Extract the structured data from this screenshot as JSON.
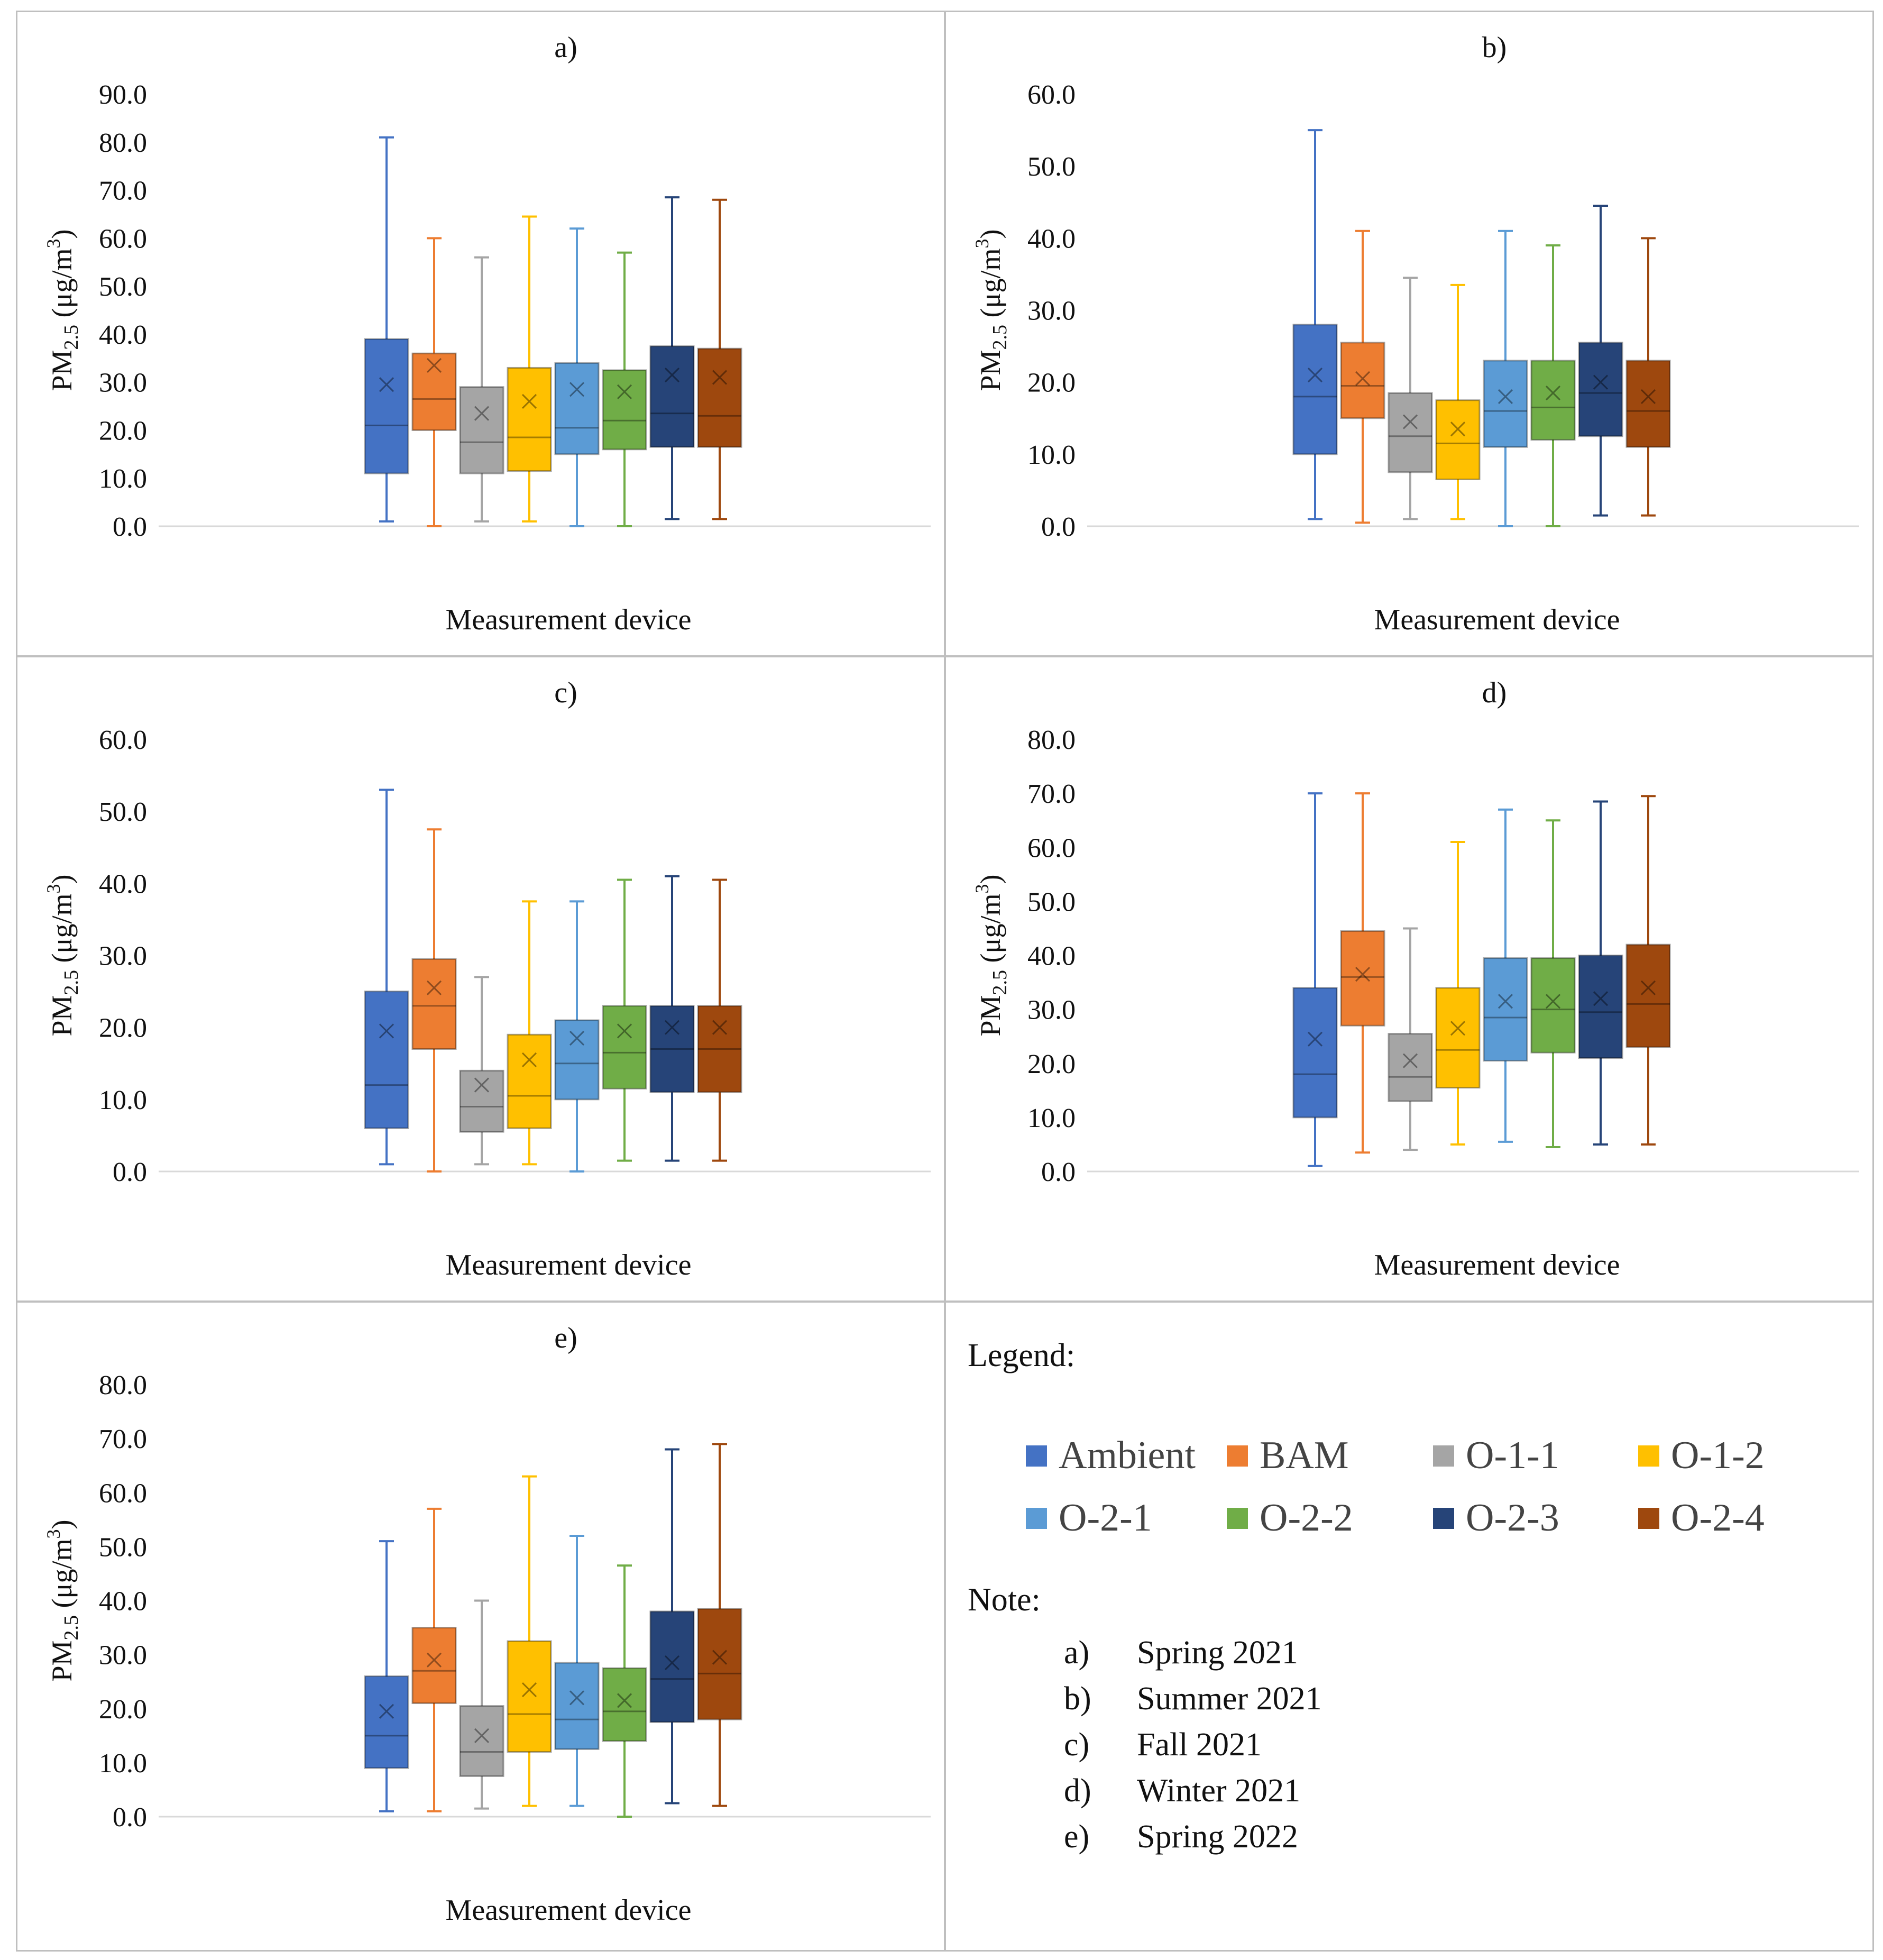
{
  "legend": {
    "title": "Legend:",
    "items": [
      {
        "label": "Ambient",
        "color": "#4472C4"
      },
      {
        "label": "BAM",
        "color": "#ED7D31"
      },
      {
        "label": "O-1-1",
        "color": "#A5A5A5"
      },
      {
        "label": "O-1-2",
        "color": "#FFC000"
      },
      {
        "label": "O-2-1",
        "color": "#5B9BD5"
      },
      {
        "label": "O-2-2",
        "color": "#70AD47"
      },
      {
        "label": "O-2-3",
        "color": "#264478"
      },
      {
        "label": "O-2-4",
        "color": "#9E480E"
      }
    ]
  },
  "note": {
    "title": "Note:",
    "items": [
      {
        "letter": "a)",
        "text": "Spring 2021"
      },
      {
        "letter": "b)",
        "text": "Summer 2021"
      },
      {
        "letter": "c)",
        "text": "Fall 2021"
      },
      {
        "letter": "d)",
        "text": "Winter 2021"
      },
      {
        "letter": "e)",
        "text": "Spring 2022"
      }
    ]
  },
  "chart_data": [
    {
      "type": "box",
      "title": "a)",
      "ylabel": "PM2.5 (μg/m3)",
      "ylabel_main": "PM",
      "ylabel_sub": "2.5",
      "ylabel_unit_pre": " (μg/m",
      "ylabel_sup": "3",
      "ylabel_unit_post": ")",
      "xlabel": "Measurement device",
      "ylim": [
        0,
        90
      ],
      "ytick_labels": [
        "0.0",
        "10.0",
        "20.0",
        "30.0",
        "40.0",
        "50.0",
        "60.0",
        "70.0",
        "80.0",
        "90.0"
      ],
      "series": [
        {
          "name": "Ambient",
          "min": 1.0,
          "q1": 11.0,
          "median": 21.0,
          "q3": 39.0,
          "max": 81.0,
          "mean": 29.5
        },
        {
          "name": "BAM",
          "min": 0.0,
          "q1": 20.0,
          "median": 26.5,
          "q3": 36.0,
          "max": 60.0,
          "mean": 33.5
        },
        {
          "name": "O-1-1",
          "min": 1.0,
          "q1": 11.0,
          "median": 17.5,
          "q3": 29.0,
          "max": 56.0,
          "mean": 23.5
        },
        {
          "name": "O-1-2",
          "min": 1.0,
          "q1": 11.5,
          "median": 18.5,
          "q3": 33.0,
          "max": 64.5,
          "mean": 26.0
        },
        {
          "name": "O-2-1",
          "min": 0.0,
          "q1": 15.0,
          "median": 20.5,
          "q3": 34.0,
          "max": 62.0,
          "mean": 28.5
        },
        {
          "name": "O-2-2",
          "min": 0.0,
          "q1": 16.0,
          "median": 22.0,
          "q3": 32.5,
          "max": 57.0,
          "mean": 28.0
        },
        {
          "name": "O-2-3",
          "min": 1.5,
          "q1": 16.5,
          "median": 23.5,
          "q3": 37.5,
          "max": 68.5,
          "mean": 31.5
        },
        {
          "name": "O-2-4",
          "min": 1.5,
          "q1": 16.5,
          "median": 23.0,
          "q3": 37.0,
          "max": 68.0,
          "mean": 31.0
        }
      ]
    },
    {
      "type": "box",
      "title": "b)",
      "ylabel": "PM2.5 (μg/m3)",
      "ylabel_main": "PM",
      "ylabel_sub": "2.5",
      "ylabel_unit_pre": " (μg/m",
      "ylabel_sup": "3",
      "ylabel_unit_post": ")",
      "xlabel": "Measurement device",
      "ylim": [
        0,
        60
      ],
      "ytick_labels": [
        "0.0",
        "10.0",
        "20.0",
        "30.0",
        "40.0",
        "50.0",
        "60.0"
      ],
      "series": [
        {
          "name": "Ambient",
          "min": 1.0,
          "q1": 10.0,
          "median": 18.0,
          "q3": 28.0,
          "max": 55.0,
          "mean": 21.0
        },
        {
          "name": "BAM",
          "min": 0.5,
          "q1": 15.0,
          "median": 19.5,
          "q3": 25.5,
          "max": 41.0,
          "mean": 20.5
        },
        {
          "name": "O-1-1",
          "min": 1.0,
          "q1": 7.5,
          "median": 12.5,
          "q3": 18.5,
          "max": 34.5,
          "mean": 14.5
        },
        {
          "name": "O-1-2",
          "min": 1.0,
          "q1": 6.5,
          "median": 11.5,
          "q3": 17.5,
          "max": 33.5,
          "mean": 13.5
        },
        {
          "name": "O-2-1",
          "min": 0.0,
          "q1": 11.0,
          "median": 16.0,
          "q3": 23.0,
          "max": 41.0,
          "mean": 18.0
        },
        {
          "name": "O-2-2",
          "min": 0.0,
          "q1": 12.0,
          "median": 16.5,
          "q3": 23.0,
          "max": 39.0,
          "mean": 18.5
        },
        {
          "name": "O-2-3",
          "min": 1.5,
          "q1": 12.5,
          "median": 18.5,
          "q3": 25.5,
          "max": 44.5,
          "mean": 20.0
        },
        {
          "name": "O-2-4",
          "min": 1.5,
          "q1": 11.0,
          "median": 16.0,
          "q3": 23.0,
          "max": 40.0,
          "mean": 18.0
        }
      ]
    },
    {
      "type": "box",
      "title": "c)",
      "ylabel": "PM2.5 (μg/m3)",
      "ylabel_main": "PM",
      "ylabel_sub": "2.5",
      "ylabel_unit_pre": " (μg/m",
      "ylabel_sup": "3",
      "ylabel_unit_post": ")",
      "xlabel": "Measurement device",
      "ylim": [
        0,
        60
      ],
      "ytick_labels": [
        "0.0",
        "10.0",
        "20.0",
        "30.0",
        "40.0",
        "50.0",
        "60.0"
      ],
      "series": [
        {
          "name": "Ambient",
          "min": 1.0,
          "q1": 6.0,
          "median": 12.0,
          "q3": 25.0,
          "max": 53.0,
          "mean": 19.5
        },
        {
          "name": "BAM",
          "min": 0.0,
          "q1": 17.0,
          "median": 23.0,
          "q3": 29.5,
          "max": 47.5,
          "mean": 25.5
        },
        {
          "name": "O-1-1",
          "min": 1.0,
          "q1": 5.5,
          "median": 9.0,
          "q3": 14.0,
          "max": 27.0,
          "mean": 12.0
        },
        {
          "name": "O-1-2",
          "min": 1.0,
          "q1": 6.0,
          "median": 10.5,
          "q3": 19.0,
          "max": 37.5,
          "mean": 15.5
        },
        {
          "name": "O-2-1",
          "min": 0.0,
          "q1": 10.0,
          "median": 15.0,
          "q3": 21.0,
          "max": 37.5,
          "mean": 18.5
        },
        {
          "name": "O-2-2",
          "min": 1.5,
          "q1": 11.5,
          "median": 16.5,
          "q3": 23.0,
          "max": 40.5,
          "mean": 19.5
        },
        {
          "name": "O-2-3",
          "min": 1.5,
          "q1": 11.0,
          "median": 17.0,
          "q3": 23.0,
          "max": 41.0,
          "mean": 20.0
        },
        {
          "name": "O-2-4",
          "min": 1.5,
          "q1": 11.0,
          "median": 17.0,
          "q3": 23.0,
          "max": 40.5,
          "mean": 20.0
        }
      ]
    },
    {
      "type": "box",
      "title": "d)",
      "ylabel": "PM2.5 (μg/m3)",
      "ylabel_main": "PM",
      "ylabel_sub": "2.5",
      "ylabel_unit_pre": " (μg/m",
      "ylabel_sup": "3",
      "ylabel_unit_post": ")",
      "xlabel": "Measurement device",
      "ylim": [
        0,
        80
      ],
      "ytick_labels": [
        "0.0",
        "10.0",
        "20.0",
        "30.0",
        "40.0",
        "50.0",
        "60.0",
        "70.0",
        "80.0"
      ],
      "series": [
        {
          "name": "Ambient",
          "min": 1.0,
          "q1": 10.0,
          "median": 18.0,
          "q3": 34.0,
          "max": 70.0,
          "mean": 24.5
        },
        {
          "name": "BAM",
          "min": 3.5,
          "q1": 27.0,
          "median": 36.0,
          "q3": 44.5,
          "max": 70.0,
          "mean": 36.5
        },
        {
          "name": "O-1-1",
          "min": 4.0,
          "q1": 13.0,
          "median": 17.5,
          "q3": 25.5,
          "max": 45.0,
          "mean": 20.5
        },
        {
          "name": "O-1-2",
          "min": 5.0,
          "q1": 15.5,
          "median": 22.5,
          "q3": 34.0,
          "max": 61.0,
          "mean": 26.5
        },
        {
          "name": "O-2-1",
          "min": 5.5,
          "q1": 20.5,
          "median": 28.5,
          "q3": 39.5,
          "max": 67.0,
          "mean": 31.5
        },
        {
          "name": "O-2-2",
          "min": 4.5,
          "q1": 22.0,
          "median": 30.0,
          "q3": 39.5,
          "max": 65.0,
          "mean": 31.5
        },
        {
          "name": "O-2-3",
          "min": 5.0,
          "q1": 21.0,
          "median": 29.5,
          "q3": 40.0,
          "max": 68.5,
          "mean": 32.0
        },
        {
          "name": "O-2-4",
          "min": 5.0,
          "q1": 23.0,
          "median": 31.0,
          "q3": 42.0,
          "max": 69.5,
          "mean": 34.0
        }
      ]
    },
    {
      "type": "box",
      "title": "e)",
      "ylabel": "PM2.5 (μg/m3)",
      "ylabel_main": "PM",
      "ylabel_sub": "2.5",
      "ylabel_unit_pre": " (μg/m",
      "ylabel_sup": "3",
      "ylabel_unit_post": ")",
      "xlabel": "Measurement device",
      "ylim": [
        0,
        80
      ],
      "ytick_labels": [
        "0.0",
        "10.0",
        "20.0",
        "30.0",
        "40.0",
        "50.0",
        "60.0",
        "70.0",
        "80.0"
      ],
      "series": [
        {
          "name": "Ambient",
          "min": 1.0,
          "q1": 9.0,
          "median": 15.0,
          "q3": 26.0,
          "max": 51.0,
          "mean": 19.5
        },
        {
          "name": "BAM",
          "min": 1.0,
          "q1": 21.0,
          "median": 27.0,
          "q3": 35.0,
          "max": 57.0,
          "mean": 29.0
        },
        {
          "name": "O-1-1",
          "min": 1.5,
          "q1": 7.5,
          "median": 12.0,
          "q3": 20.5,
          "max": 40.0,
          "mean": 15.0
        },
        {
          "name": "O-1-2",
          "min": 2.0,
          "q1": 12.0,
          "median": 19.0,
          "q3": 32.5,
          "max": 63.0,
          "mean": 23.5
        },
        {
          "name": "O-2-1",
          "min": 2.0,
          "q1": 12.5,
          "median": 18.0,
          "q3": 28.5,
          "max": 52.0,
          "mean": 22.0
        },
        {
          "name": "O-2-2",
          "min": 0.0,
          "q1": 14.0,
          "median": 19.5,
          "q3": 27.5,
          "max": 46.5,
          "mean": 21.5
        },
        {
          "name": "O-2-3",
          "min": 2.5,
          "q1": 17.5,
          "median": 25.5,
          "q3": 38.0,
          "max": 68.0,
          "mean": 28.5
        },
        {
          "name": "O-2-4",
          "min": 2.0,
          "q1": 18.0,
          "median": 26.5,
          "q3": 38.5,
          "max": 69.0,
          "mean": 29.5
        }
      ]
    }
  ]
}
